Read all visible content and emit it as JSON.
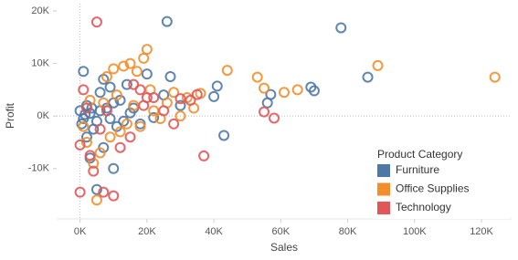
{
  "chart_data": {
    "type": "scatter",
    "x_label": "Sales",
    "y_label": "Profit",
    "legend_title": "Product Category",
    "legend_position": "lower-right",
    "xlim": [
      -7000,
      129000
    ],
    "ylim": [
      -19600,
      21400
    ],
    "xticks": [
      {
        "value": 0,
        "label": "0K"
      },
      {
        "value": 20000,
        "label": "20K"
      },
      {
        "value": 40000,
        "label": "40K"
      },
      {
        "value": 60000,
        "label": "60K"
      },
      {
        "value": 80000,
        "label": "80K"
      },
      {
        "value": 100000,
        "label": "100K"
      },
      {
        "value": 120000,
        "label": "120K"
      }
    ],
    "yticks": [
      {
        "value": -10000,
        "label": "-10K"
      },
      {
        "value": 0,
        "label": "0K"
      },
      {
        "value": 10000,
        "label": "10K"
      },
      {
        "value": 20000,
        "label": "20K"
      }
    ],
    "grid": false,
    "zero_lines": true,
    "series": [
      {
        "name": "Furniture",
        "color": "#4e79a7",
        "x": [
          86000,
          69000,
          70000,
          78000,
          26000,
          56000,
          57000,
          43000,
          40000,
          41000,
          22000,
          27000,
          10000,
          5000,
          3000,
          1000,
          7000,
          2000,
          1000,
          3000,
          5000,
          8000,
          10000,
          12000,
          6000,
          4000,
          2000,
          15000,
          18000,
          11000,
          9000,
          7000,
          25000,
          30000,
          14000,
          0,
          500,
          1500,
          3500,
          6000,
          9000,
          13000,
          16000,
          20000
        ],
        "values": [
          7400,
          5500,
          4800,
          16800,
          18000,
          2500,
          4100,
          -3700,
          3700,
          5700,
          -300,
          7500,
          -10000,
          -14000,
          -8000,
          8500,
          7000,
          2000,
          -500,
          500,
          -1000,
          1500,
          2500,
          3000,
          4500,
          -2500,
          -4000,
          600,
          -1500,
          -2000,
          5500,
          -6000,
          4000,
          2000,
          6000,
          1000,
          -1500,
          300,
          1500,
          1000,
          -500,
          -1000,
          1500,
          8000
        ]
      },
      {
        "name": "Office Supplies",
        "color": "#f28e2b",
        "x": [
          124000,
          89000,
          65000,
          61000,
          53000,
          55000,
          44000,
          36000,
          34000,
          32000,
          28000,
          20000,
          19000,
          17000,
          15000,
          13000,
          10000,
          8000,
          5000,
          2000,
          4000,
          6000,
          3000,
          11000,
          12000,
          16000,
          18000,
          21000,
          24000,
          26000,
          30000,
          22000,
          9000,
          7000,
          1000,
          14000
        ],
        "values": [
          7400,
          9600,
          5000,
          4500,
          7400,
          5300,
          8700,
          4300,
          1500,
          3500,
          4500,
          12700,
          11000,
          8500,
          10000,
          9500,
          9000,
          7500,
          -16000,
          -5000,
          -9000,
          -7000,
          3000,
          4000,
          -3000,
          2000,
          -2000,
          5000,
          -500,
          2500,
          0,
          1000,
          -4000,
          2500,
          -2000,
          -1500
        ]
      },
      {
        "name": "Technology",
        "color": "#e15759",
        "x": [
          5000,
          37000,
          58000,
          55000,
          35000,
          33000,
          30000,
          22000,
          20000,
          18000,
          16000,
          10000,
          7000,
          0,
          0,
          4000,
          3000,
          12000,
          8000,
          1000,
          25000,
          28000,
          15000,
          19000,
          6000,
          2000
        ],
        "values": [
          17900,
          -7600,
          -400,
          800,
          4100,
          3000,
          3300,
          3500,
          3500,
          5000,
          6000,
          -15200,
          -14500,
          -14500,
          -5500,
          -10500,
          -7500,
          -6000,
          1000,
          5000,
          1000,
          -1500,
          -4000,
          2000,
          -2500,
          1500
        ]
      }
    ]
  }
}
